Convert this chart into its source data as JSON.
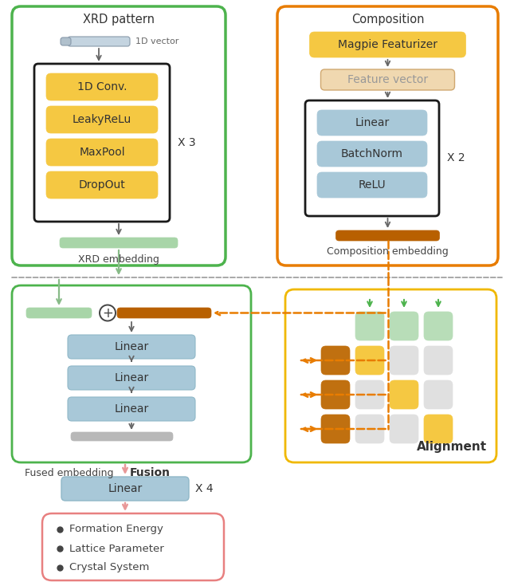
{
  "fig_width": 6.4,
  "fig_height": 7.3,
  "bg_color": "#ffffff",
  "colors": {
    "green_border": "#4db34d",
    "orange_border": "#e87c00",
    "yellow_border": "#f0b800",
    "dark_border": "#222222",
    "yellow_box": "#f5c842",
    "blue_box": "#a8c8d8",
    "green_embed": "#a8d5a8",
    "orange_embed": "#b86000",
    "peach_box": "#f0d8b0",
    "salmon_border": "#e88080",
    "arrow_green": "#88bb88",
    "arrow_pink": "#e89898",
    "arrow_orange": "#e87c00",
    "cell_dark_orange": "#c07010",
    "cell_yellow": "#f5c842",
    "cell_light_gray": "#e0e0e0",
    "cell_green_light": "#b8ddb8",
    "dashed_gray": "#999999"
  },
  "xrd_title": "XRD pattern",
  "comp_title": "Composition",
  "xrd_embed_label": "XRD embedding",
  "comp_embed_label": "Composition embedding",
  "fusion_label": "Fused embedding",
  "fusion_bold": "Fusion",
  "alignment_bold": "Alignment",
  "xrd_blocks": [
    "1D Conv.",
    "LeakyReLu",
    "MaxPool",
    "DropOut"
  ],
  "comp_blocks": [
    "Linear",
    "BatchNorm",
    "ReLU"
  ],
  "fusion_blocks": [
    "Linear",
    "Linear",
    "Linear"
  ],
  "x3_label": "X 3",
  "x2_label": "X 2",
  "x4_label": "X 4",
  "magpie_label": "Magpie Featurizer",
  "feature_vector_label": "Feature vector",
  "vector_1d_label": "1D vector",
  "linear_bottom_label": "Linear",
  "outputs": [
    "Formation Energy",
    "Lattice Parameter",
    "Crystal System"
  ]
}
